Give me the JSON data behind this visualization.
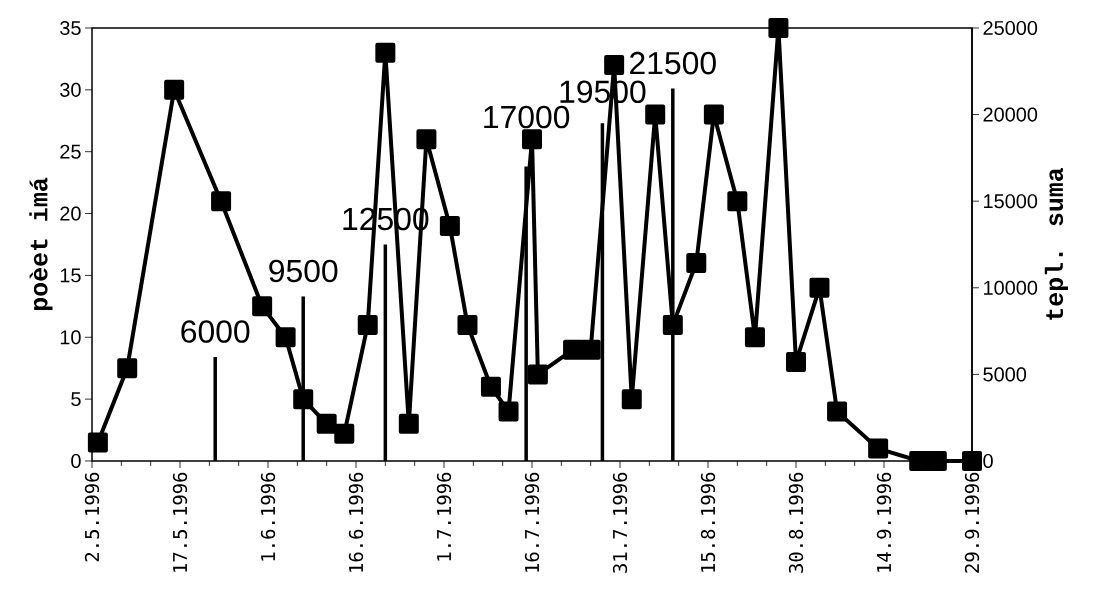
{
  "chart_data": {
    "type": "line",
    "ylabel": "poèet imá",
    "y2label": "tepl. suma",
    "xlim": [
      "1996-05-02",
      "1996-09-29"
    ],
    "xticks": [
      {
        "value": "1996-05-02",
        "label": "2.5.1996"
      },
      {
        "value": "1996-05-17",
        "label": "17.5.1996"
      },
      {
        "value": "1996-06-01",
        "label": "1.6.1996"
      },
      {
        "value": "1996-06-16",
        "label": "16.6.1996"
      },
      {
        "value": "1996-07-01",
        "label": "1.7.1996"
      },
      {
        "value": "1996-07-16",
        "label": "16.7.1996"
      },
      {
        "value": "1996-07-31",
        "label": "31.7.1996"
      },
      {
        "value": "1996-08-15",
        "label": "15.8.1996"
      },
      {
        "value": "1996-08-30",
        "label": "30.8.1996"
      },
      {
        "value": "1996-09-14",
        "label": "14.9.1996"
      },
      {
        "value": "1996-09-29",
        "label": "29.9.1996"
      }
    ],
    "ylim": [
      0,
      35
    ],
    "yticks": [
      0,
      5,
      10,
      15,
      20,
      25,
      30,
      35
    ],
    "y2lim": [
      0,
      25000
    ],
    "y2ticks": [
      0,
      5000,
      10000,
      15000,
      20000,
      25000
    ],
    "marker": "square",
    "line_style": "solid",
    "series": [
      {
        "color": "#000000",
        "x": [
          "1996-05-03",
          "1996-05-08",
          "1996-05-16",
          "1996-05-24",
          "1996-05-31",
          "1996-06-04",
          "1996-06-07",
          "1996-06-11",
          "1996-06-14",
          "1996-06-18",
          "1996-06-21",
          "1996-06-25",
          "1996-06-28",
          "1996-07-02",
          "1996-07-05",
          "1996-07-09",
          "1996-07-12",
          "1996-07-16",
          "1996-07-17",
          "1996-07-23",
          "1996-07-26",
          "1996-07-30",
          "1996-08-02",
          "1996-08-06",
          "1996-08-09",
          "1996-08-13",
          "1996-08-16",
          "1996-08-20",
          "1996-08-23",
          "1996-08-27",
          "1996-08-30",
          "1996-09-03",
          "1996-09-06",
          "1996-09-13",
          "1996-09-20",
          "1996-09-23",
          "1996-09-29"
        ],
        "values": [
          1.5,
          7.5,
          30,
          21,
          12.5,
          10,
          5,
          3,
          2.2,
          11,
          33,
          3,
          26,
          19,
          11,
          6,
          4,
          26,
          7,
          9,
          9,
          32,
          5,
          28,
          11,
          16,
          28,
          21,
          10,
          35,
          8,
          14,
          4,
          1,
          0,
          0,
          0
        ]
      },
      {
        "type": "bar",
        "axis": "y2",
        "color": "#000000",
        "x": [
          "1996-05-23",
          "1996-06-07",
          "1996-06-21",
          "1996-07-15",
          "1996-07-28",
          "1996-08-09"
        ],
        "values": [
          6000,
          9500,
          12500,
          17000,
          19500,
          21500
        ],
        "value_labels": [
          "6000",
          "9500",
          "12500",
          "17000",
          "19500",
          "21500"
        ]
      }
    ]
  }
}
